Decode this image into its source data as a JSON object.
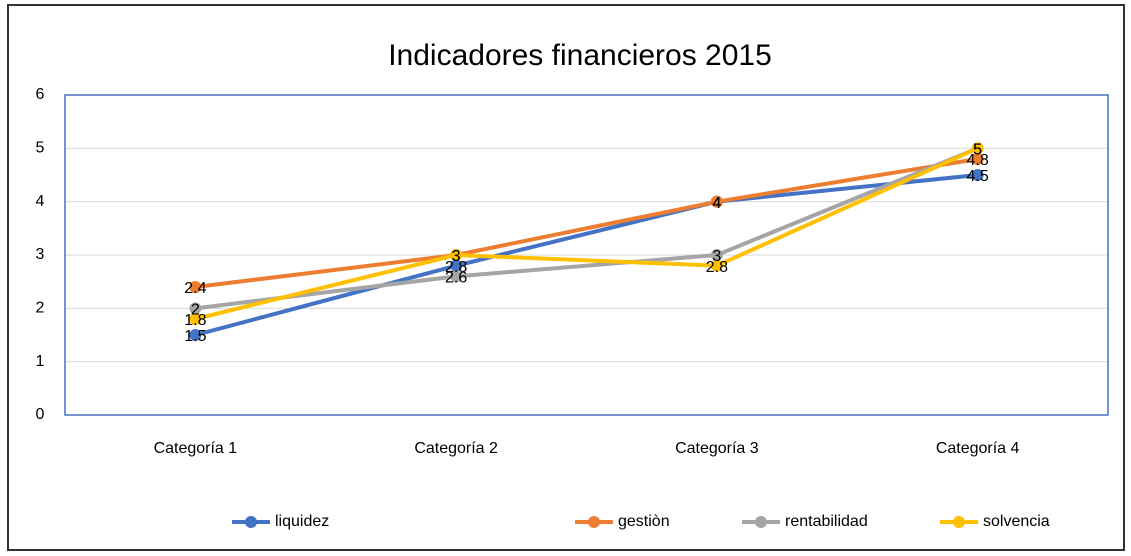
{
  "chart_data": {
    "type": "line",
    "title": "Indicadores financieros 2015",
    "categories": [
      "Categoría 1",
      "Categoría 2",
      "Categoría 3",
      "Categoría 4"
    ],
    "series": [
      {
        "name": "liquidez",
        "color": "#4472c4",
        "values": [
          1.5,
          2.8,
          4,
          4.5
        ]
      },
      {
        "name": "gestiòn",
        "color": "#ed7d31",
        "values": [
          2.4,
          3,
          4,
          4.8
        ]
      },
      {
        "name": "rentabilidad",
        "color": "#a5a5a5",
        "values": [
          2,
          2.6,
          3,
          5
        ]
      },
      {
        "name": "solvencia",
        "color": "#ffc000",
        "values": [
          1.8,
          3,
          2.8,
          5
        ]
      }
    ],
    "ylim": [
      0,
      6
    ],
    "yticks": [
      0,
      1,
      2,
      3,
      4,
      5,
      6
    ],
    "grid": true,
    "legend": "bottom"
  }
}
